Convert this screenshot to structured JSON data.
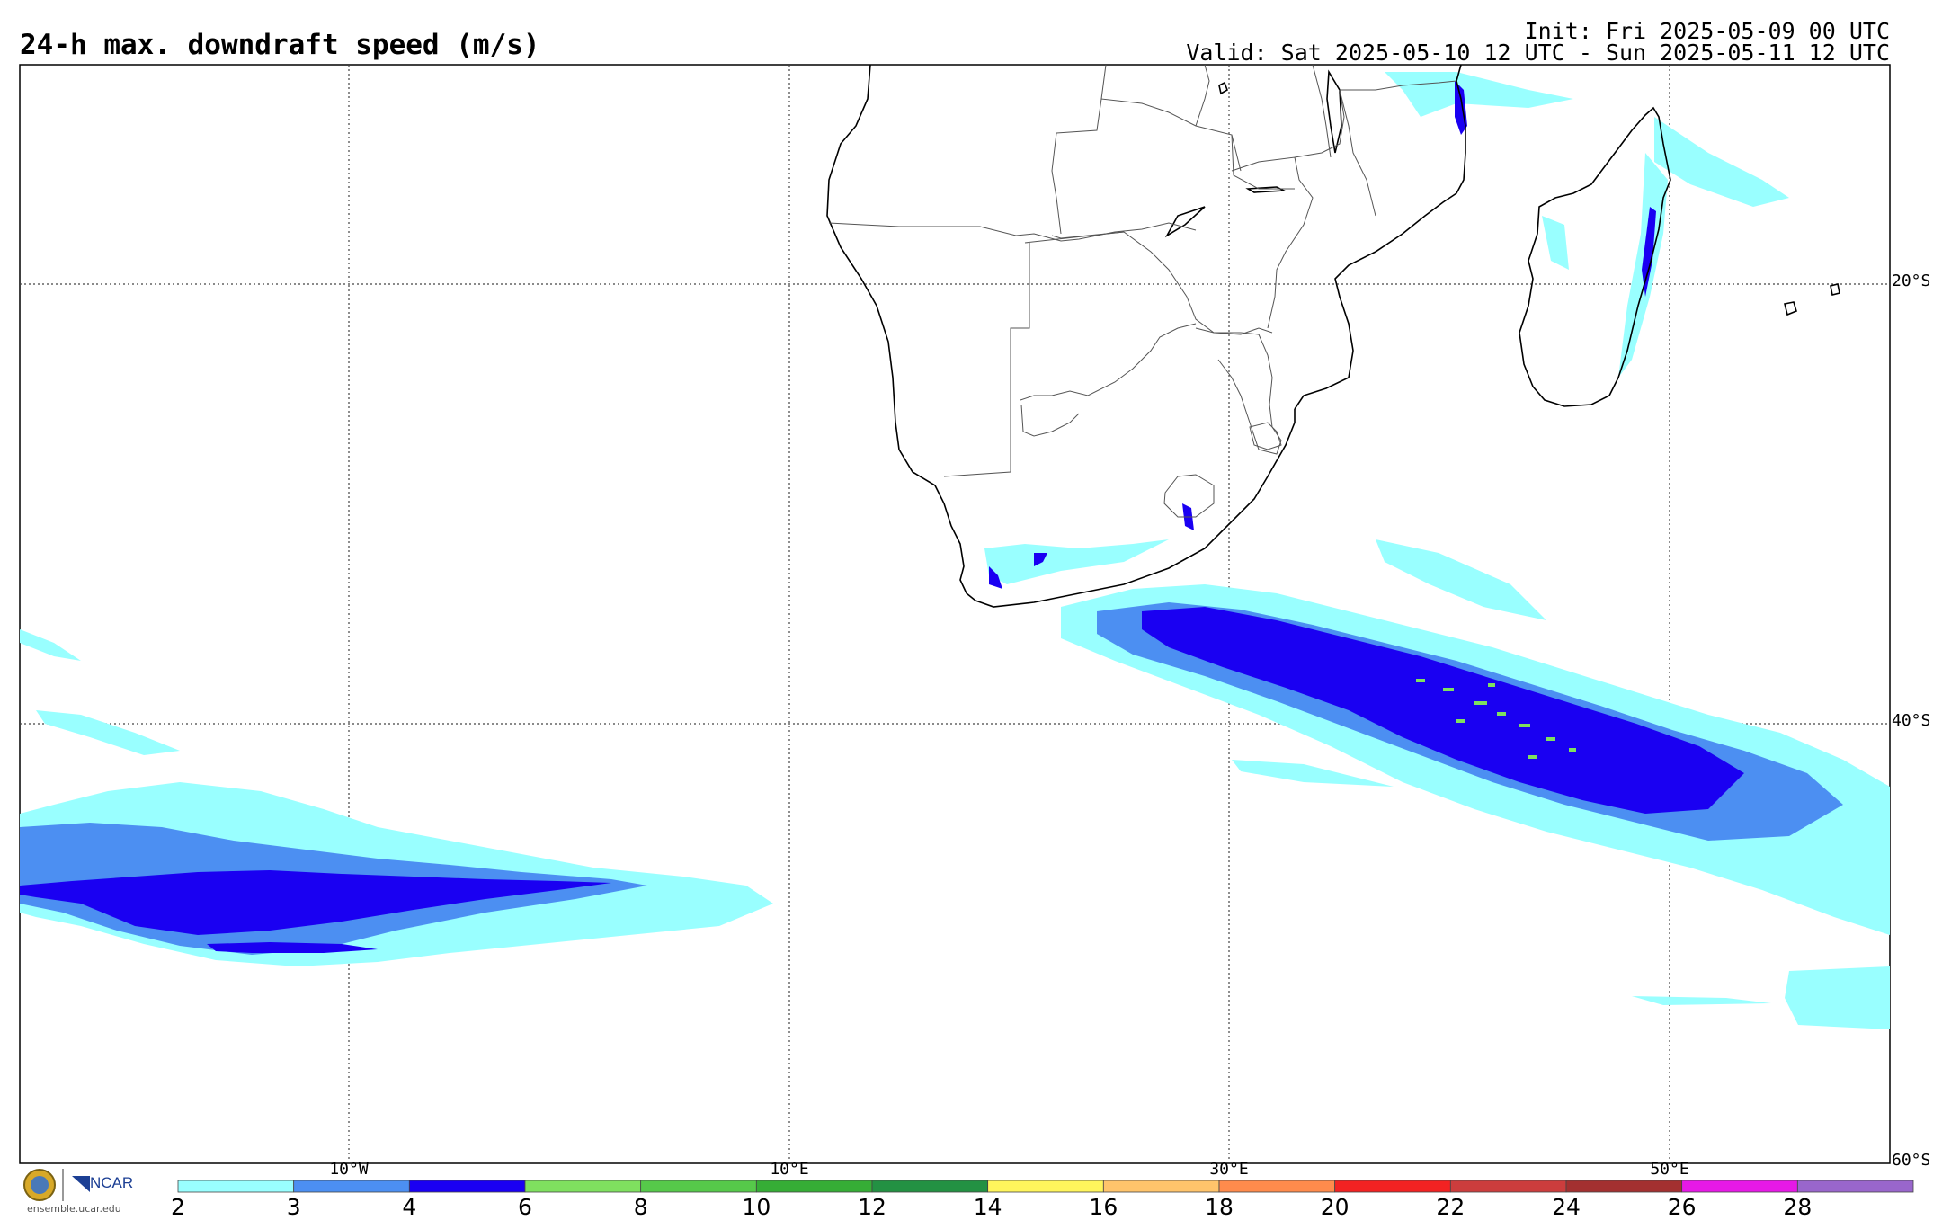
{
  "header": {
    "title": "24-h max. downdraft speed (m/s)",
    "init": "Init: Fri 2025-05-09 00 UTC",
    "valid": "Valid: Sat 2025-05-10 12 UTC - Sun 2025-05-11 12 UTC"
  },
  "map": {
    "lat_labels": [
      "20°S",
      "40°S",
      "60°S"
    ],
    "lon_labels": [
      "10°W",
      "10°E",
      "30°E",
      "50°E"
    ]
  },
  "colorbar": {
    "ticks": [
      "2",
      "3",
      "4",
      "6",
      "8",
      "10",
      "12",
      "14",
      "16",
      "18",
      "20",
      "22",
      "24",
      "26",
      "28"
    ],
    "colors": [
      "#99ffff",
      "#4c8ff2",
      "#1a00f2",
      "#7fe05f",
      "#56c94a",
      "#36ad36",
      "#239143",
      "#fff55c",
      "#ffc46b",
      "#ff8b4c",
      "#f22222",
      "#cc3d3d",
      "#a33030",
      "#e619e6",
      "#9966cc"
    ]
  },
  "footer": {
    "logo_text": "NCAR",
    "url": "ensemble.ucar.edu"
  }
}
